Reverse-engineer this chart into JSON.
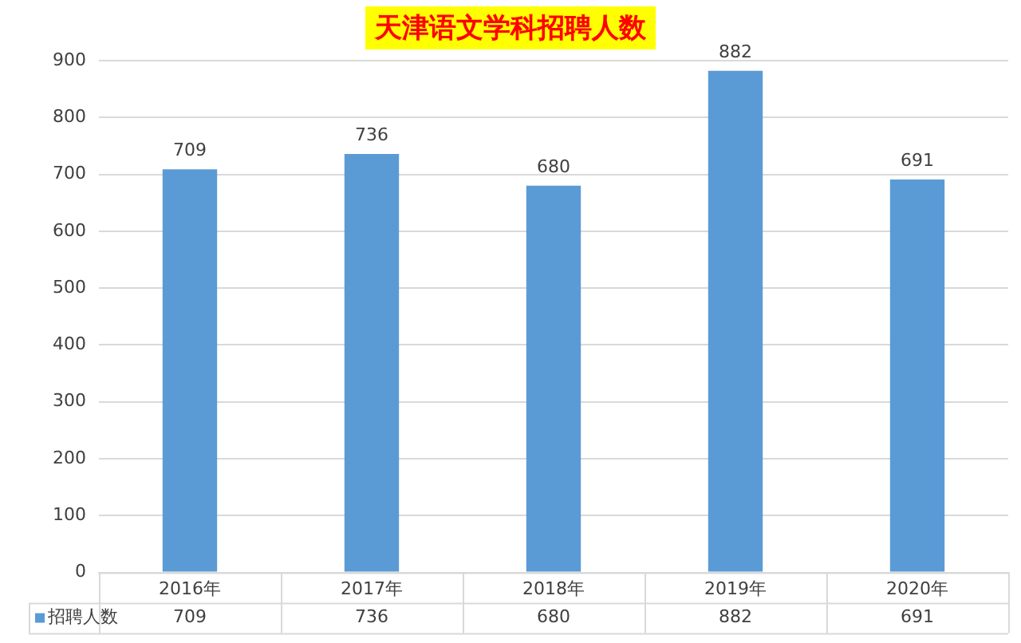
{
  "chart_data": {
    "type": "bar",
    "title": "天津语文学科招聘人数",
    "categories": [
      "2016年",
      "2017年",
      "2018年",
      "2019年",
      "2020年"
    ],
    "series": [
      {
        "name": "招聘人数",
        "color": "#5b9bd5",
        "values": [
          709,
          736,
          680,
          882,
          691
        ],
        "value_labels": [
          "709",
          "736",
          "680",
          "882",
          "691"
        ]
      }
    ],
    "ylim": [
      0,
      900
    ],
    "yticks": [
      0,
      100,
      200,
      300,
      400,
      500,
      600,
      700,
      800,
      900
    ],
    "annotations": [
      "709",
      "736",
      "680",
      "882",
      "691"
    ],
    "grid": "y",
    "data_labels": true,
    "legend": "bottom"
  }
}
